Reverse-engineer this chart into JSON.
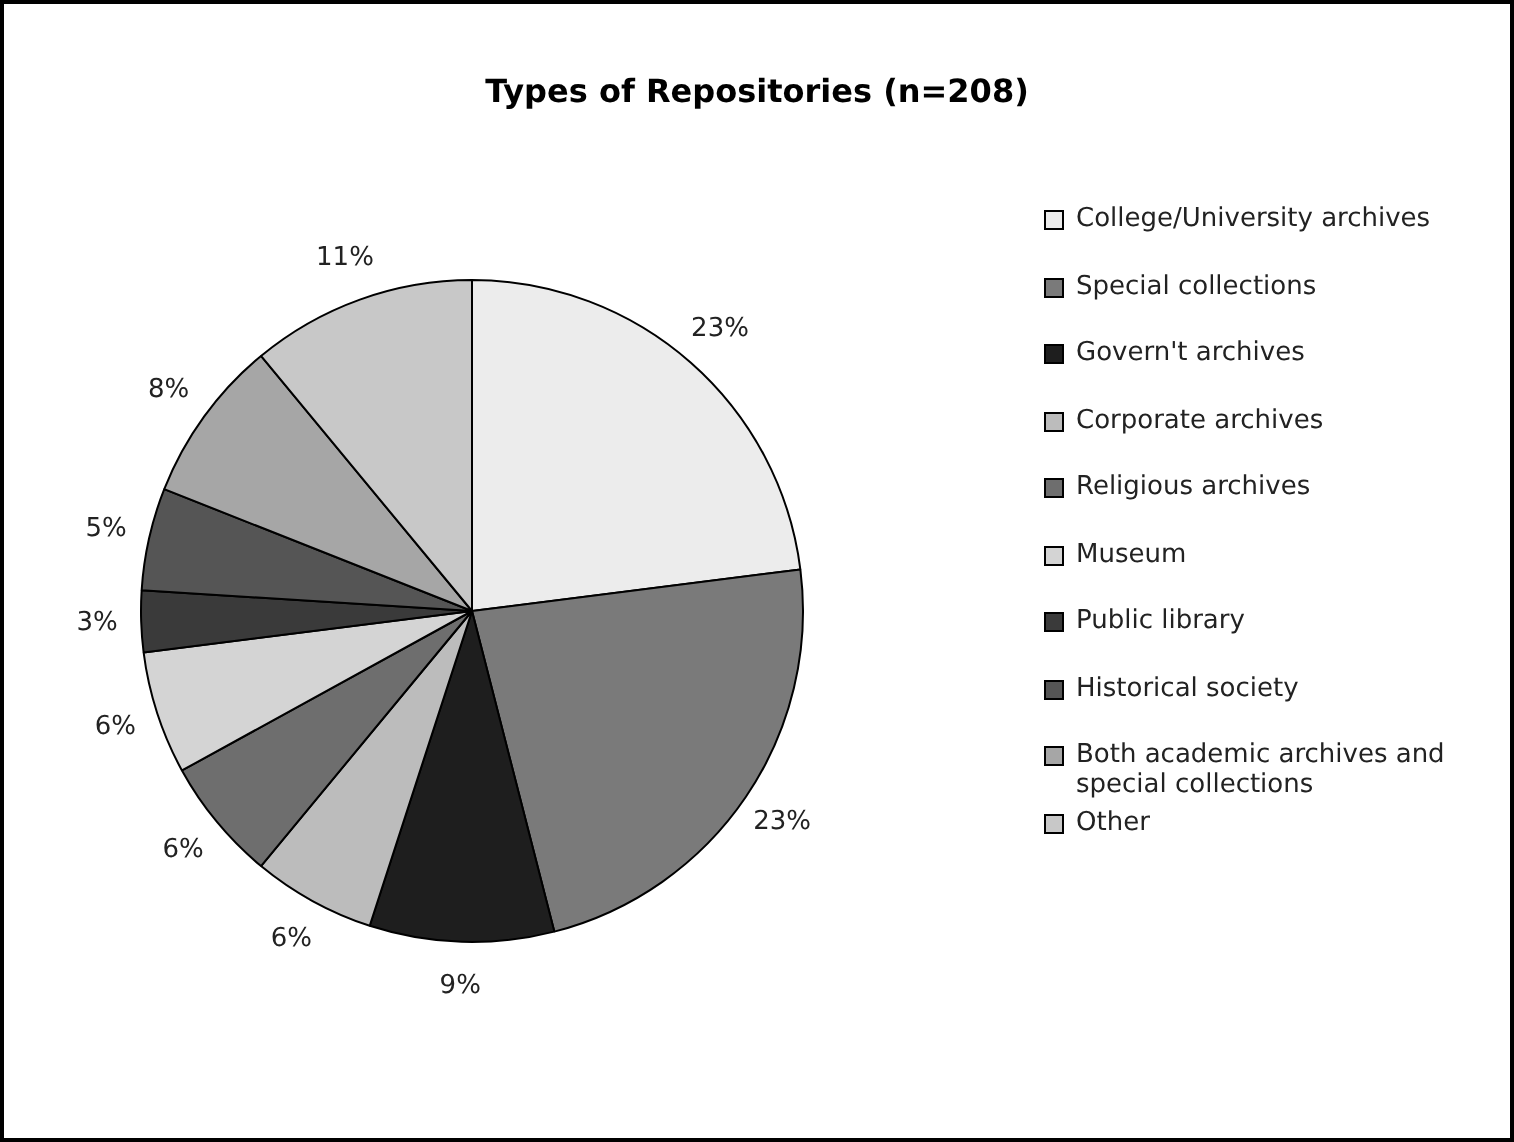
{
  "chart_data": {
    "type": "pie",
    "title": "Types of Repositories (n=208)",
    "categories": [
      "College/University archives",
      "Special collections",
      "Govern't archives",
      "Corporate archives",
      "Religious archives",
      "Museum",
      "Public library",
      "Historical society",
      "Both academic archives and special collections",
      "Other"
    ],
    "values": [
      23,
      23,
      9,
      6,
      6,
      6,
      3,
      5,
      8,
      11
    ],
    "value_labels": [
      "23%",
      "23%",
      "9%",
      "6%",
      "6%",
      "6%",
      "3%",
      "5%",
      "8%",
      "11%"
    ],
    "colors": [
      "#ececec",
      "#7a7a7a",
      "#1e1e1e",
      "#bcbcbc",
      "#6e6e6e",
      "#d4d4d4",
      "#3a3a3a",
      "#555555",
      "#a6a6a6",
      "#c8c8c8"
    ],
    "legend": "right"
  }
}
